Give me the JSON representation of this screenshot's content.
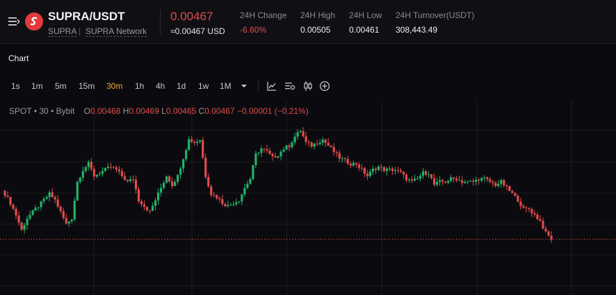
{
  "header": {
    "pair": "SUPRA/USDT",
    "base": "SUPRA",
    "separator": "|",
    "network": "SUPRA Network",
    "last_price": "0.00467",
    "fiat_price": "≈0.00467 USD",
    "stats": [
      {
        "label": "24H Change",
        "value": "-6.60%",
        "negative": true
      },
      {
        "label": "24H High",
        "value": "0.00505",
        "negative": false
      },
      {
        "label": "24H Low",
        "value": "0.00461",
        "negative": false
      },
      {
        "label": "24H Turnover(USDT)",
        "value": "308,443.49",
        "negative": false
      }
    ]
  },
  "section_title": "Chart",
  "toolbar": {
    "intervals": [
      "1s",
      "1m",
      "5m",
      "15m",
      "30m",
      "1h",
      "4h",
      "1d",
      "1w",
      "1M"
    ],
    "active_interval": "30m",
    "icons": [
      "chevron-down-icon",
      "line-chart-icon",
      "indicator-settings-icon",
      "candlestick-icon",
      "add-icon"
    ]
  },
  "legend": {
    "source": "SPOT",
    "bullet": "•",
    "interval": "30",
    "exchange": "Bybit",
    "o_label": "O",
    "o": "0.00468",
    "h_label": "H",
    "h": "0.00469",
    "l_label": "L",
    "l": "0.00465",
    "c_label": "C",
    "c": "0.00467",
    "change": "−0.00001",
    "change_pct": "(−0.21%)"
  },
  "colors": {
    "up": "#22b26a",
    "down": "#e24b4b",
    "accent": "#f0a63a",
    "background": "#0b0b0f"
  },
  "chart_data": {
    "type": "candlestick",
    "interval": "30m",
    "close_series": [
      0.00482,
      0.00479,
      0.00475,
      0.0047,
      0.00474,
      0.00476,
      0.00478,
      0.0048,
      0.00482,
      0.0048,
      0.00476,
      0.00472,
      0.00474,
      0.00486,
      0.0049,
      0.00492,
      0.00488,
      0.00489,
      0.0049,
      0.00491,
      0.0049,
      0.00488,
      0.00486,
      0.00487,
      0.0048,
      0.00478,
      0.00476,
      0.0048,
      0.00484,
      0.00488,
      0.00485,
      0.00488,
      0.00494,
      0.005,
      0.00499,
      0.005,
      0.00488,
      0.00482,
      0.00481,
      0.00479,
      0.00478,
      0.00479,
      0.0048,
      0.00484,
      0.00487,
      0.00495,
      0.00497,
      0.00496,
      0.00494,
      0.00495,
      0.00497,
      0.00498,
      0.00501,
      0.00503,
      0.00499,
      0.00498,
      0.00499,
      0.005,
      0.00498,
      0.00496,
      0.00494,
      0.00493,
      0.00492,
      0.00492,
      0.0049,
      0.00488,
      0.0049,
      0.00491,
      0.0049,
      0.0049,
      0.0049,
      0.00489,
      0.00487,
      0.00486,
      0.00487,
      0.00489,
      0.00489,
      0.00485,
      0.00486,
      0.00486,
      0.00487,
      0.00487,
      0.00486,
      0.00486,
      0.00486,
      0.00487,
      0.00487,
      0.00486,
      0.00485,
      0.00486,
      0.00484,
      0.00482,
      0.0048,
      0.00477,
      0.00477,
      0.00475,
      0.00473,
      0.00469,
      0.00467
    ],
    "last_price_line": 0.00467
  }
}
